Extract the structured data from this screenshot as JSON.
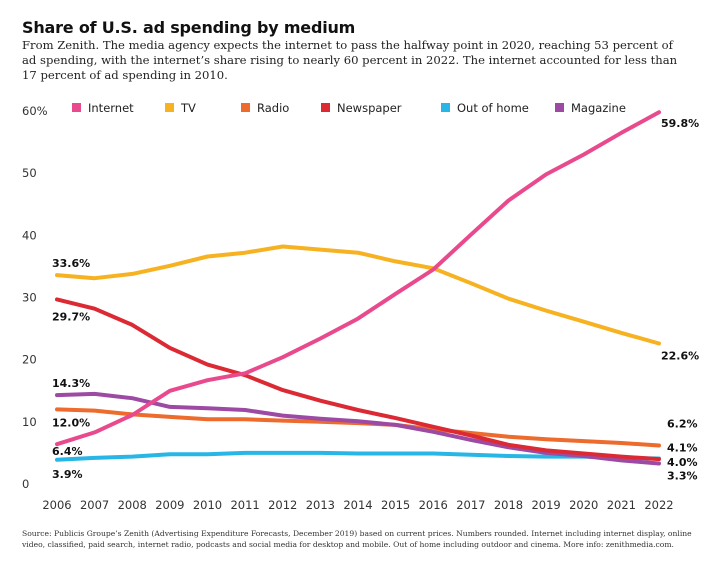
{
  "title": "Share of U.S. ad spending by medium",
  "subtitle": "From Zenith. The media agency expects the internet to pass the halfway point in 2020, reaching 53 percent of ad spending, with the internet’s share rising to nearly 60 percent in 2022. The internet accounted for less than 17 percent of ad spending in 2010.",
  "source": "Source: Publicis Groupe’s Zenith (Advertising Expenditure Forecasts, December 2019) based on current prices. Numbers rounded. Internet including internet display, online video, classified, paid search, internet radio, podcasts and social media for desktop and mobile. Out of home including outdoor and cinema. More info: zenithmedia.com.",
  "chart_data": {
    "type": "line",
    "x": [
      2006,
      2007,
      2008,
      2009,
      2010,
      2011,
      2012,
      2013,
      2014,
      2015,
      2016,
      2017,
      2018,
      2019,
      2020,
      2021,
      2022
    ],
    "ylim": [
      0,
      60
    ],
    "yticks": [
      0,
      10,
      20,
      30,
      40,
      50,
      60
    ],
    "ytick_labels": [
      "0",
      "10",
      "20",
      "30",
      "40",
      "50",
      "60%"
    ],
    "grid": false,
    "legend": "top",
    "series": [
      {
        "name": "Internet",
        "color": "#e84a8d",
        "values": [
          6.4,
          8.3,
          11.1,
          15.0,
          16.7,
          17.8,
          20.4,
          23.4,
          26.6,
          30.6,
          34.5,
          40.1,
          45.6,
          49.8,
          53.0,
          56.5,
          59.8
        ]
      },
      {
        "name": "TV",
        "color": "#f6b221",
        "values": [
          33.6,
          33.1,
          33.8,
          35.1,
          36.6,
          37.2,
          38.2,
          37.7,
          37.2,
          35.8,
          34.7,
          32.3,
          29.8,
          27.9,
          26.1,
          24.3,
          22.6
        ]
      },
      {
        "name": "Radio",
        "color": "#ec6b2d",
        "values": [
          12.0,
          11.8,
          11.2,
          10.8,
          10.4,
          10.4,
          10.2,
          10.0,
          9.8,
          9.5,
          8.8,
          8.2,
          7.6,
          7.2,
          6.9,
          6.6,
          6.2
        ]
      },
      {
        "name": "Newspaper",
        "color": "#dc2a35",
        "values": [
          29.7,
          28.2,
          25.6,
          21.9,
          19.2,
          17.5,
          15.1,
          13.4,
          11.9,
          10.6,
          9.2,
          7.8,
          6.3,
          5.4,
          4.9,
          4.4,
          4.0
        ]
      },
      {
        "name": "Out of home",
        "color": "#27b6e6",
        "values": [
          3.9,
          4.2,
          4.4,
          4.8,
          4.8,
          5.0,
          5.0,
          5.0,
          4.9,
          4.9,
          4.9,
          4.7,
          4.5,
          4.4,
          4.4,
          4.2,
          4.1
        ]
      },
      {
        "name": "Magazine",
        "color": "#9c4aa3",
        "values": [
          14.3,
          14.5,
          13.8,
          12.4,
          12.2,
          11.9,
          11.0,
          10.5,
          10.1,
          9.5,
          8.4,
          7.1,
          5.9,
          5.0,
          4.5,
          3.8,
          3.3
        ]
      }
    ],
    "data_labels": [
      {
        "series": "Internet",
        "year": 2006,
        "text": "6.4%"
      },
      {
        "series": "TV",
        "year": 2006,
        "text": "33.6%"
      },
      {
        "series": "Radio",
        "year": 2006,
        "text": "12.0%"
      },
      {
        "series": "Newspaper",
        "year": 2006,
        "text": "29.7%"
      },
      {
        "series": "Out of home",
        "year": 2006,
        "text": "3.9%"
      },
      {
        "series": "Magazine",
        "year": 2006,
        "text": "14.3%"
      },
      {
        "series": "Internet",
        "year": 2022,
        "text": "59.8%"
      },
      {
        "series": "TV",
        "year": 2022,
        "text": "22.6%"
      },
      {
        "series": "Radio",
        "year": 2022,
        "text": "6.2%"
      },
      {
        "series": "Out of home",
        "year": 2022,
        "text": "4.1%"
      },
      {
        "series": "Newspaper",
        "year": 2022,
        "text": "4.0%"
      },
      {
        "series": "Magazine",
        "year": 2022,
        "text": "3.3%"
      }
    ]
  }
}
